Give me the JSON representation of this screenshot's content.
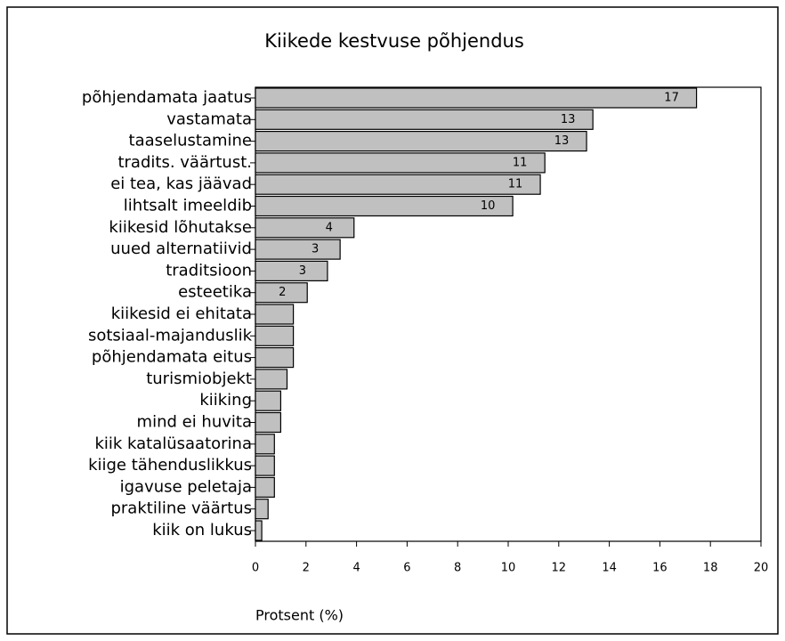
{
  "chart_data": {
    "type": "barh",
    "title": "Kiikede kestvuse põhjendus",
    "x_label": "Protsent (%)",
    "categories": [
      "põhjendamata jaatus",
      "vastamata",
      "taaselustamine",
      "tradits. väärtust.",
      "ei tea, kas jäävad",
      "lihtsalt imeeldib",
      "kiikesid lõhutakse",
      "uued alternatiivid",
      "traditsioon",
      "esteetika",
      "kiikesid ei ehitata",
      "sotsiaal-majanduslik",
      "põhjendamata eitus",
      "turismiobjekt",
      "kiiking",
      "mind ei huvita",
      "kiik katalüsaatorina",
      "kiige tähenduslikkus",
      "igavuse peletaja",
      "praktiline väärtus",
      "kiik on lukus"
    ],
    "values": [
      17.45,
      13.35,
      13.1,
      11.45,
      11.27,
      10.18,
      3.9,
      3.35,
      2.85,
      2.05,
      1.5,
      1.5,
      1.5,
      1.25,
      1.0,
      1.0,
      0.75,
      0.75,
      0.75,
      0.5,
      0.25
    ],
    "value_labels": [
      "17",
      "13",
      "13",
      "11",
      "11",
      "10",
      "4",
      "3",
      "3",
      "2",
      null,
      null,
      null,
      null,
      null,
      null,
      null,
      null,
      null,
      null,
      null
    ],
    "color": "#c0c0c0",
    "xlim": [
      0,
      20
    ],
    "xticks": [
      0,
      2,
      4,
      6,
      8,
      10,
      12,
      14,
      16,
      18,
      20
    ]
  }
}
